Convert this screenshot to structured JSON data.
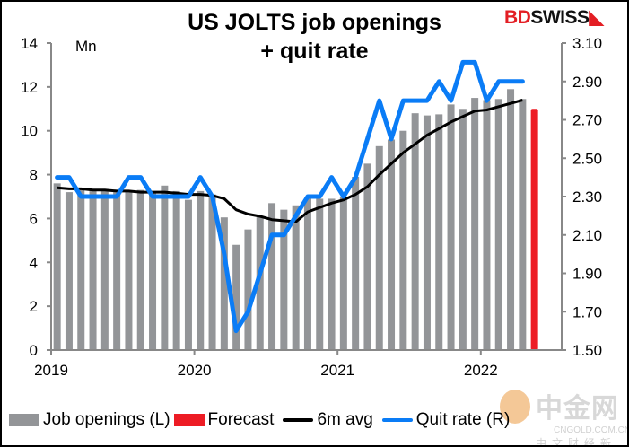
{
  "title_line1": "US JOLTS job openings",
  "title_line2": "+ quit rate",
  "logo": {
    "part1": "BD",
    "part2": "SWISS"
  },
  "watermark": {
    "name": "中金网",
    "url": "CNGOLD.COM.CN",
    "tagline": "中文财经新媒体"
  },
  "colors": {
    "bars": "#939598",
    "forecast": "#ed1c24",
    "avg": "#000000",
    "quit": "#0a7cf6"
  },
  "chart_data": {
    "type": "bar",
    "title": "US JOLTS job openings + quit rate",
    "left_axis": {
      "label": "Mn",
      "range": [
        0,
        14
      ],
      "ticks": [
        "0",
        "2",
        "4",
        "6",
        "8",
        "10",
        "12",
        "14"
      ]
    },
    "right_axis": {
      "range": [
        1.5,
        3.1
      ],
      "ticks": [
        "1.50",
        "1.70",
        "1.90",
        "2.10",
        "2.30",
        "2.50",
        "2.70",
        "2.90",
        "3.10"
      ]
    },
    "x_ticks": [
      "2019",
      "2020",
      "2021",
      "2022"
    ],
    "start": "2019-01",
    "series": [
      {
        "name": "Job openings (L)",
        "type": "bar",
        "axis": "left",
        "values": [
          7.6,
          7.2,
          7.3,
          7.3,
          7.3,
          7.2,
          7.2,
          7.3,
          7.2,
          7.5,
          7.25,
          6.85,
          7.25,
          7.1,
          6.05,
          4.8,
          5.5,
          6.1,
          6.7,
          6.4,
          6.6,
          6.9,
          6.9,
          6.9,
          7.0,
          7.9,
          8.5,
          9.3,
          9.6,
          10.0,
          10.8,
          10.7,
          10.75,
          11.2,
          11.0,
          11.5,
          11.4,
          11.45,
          11.9,
          11.45
        ]
      },
      {
        "name": "Forecast",
        "type": "bar",
        "axis": "left",
        "month": "2022-05",
        "value": 11.0
      },
      {
        "name": "6m avg",
        "type": "line",
        "axis": "left",
        "values": [
          7.4,
          7.35,
          7.35,
          7.3,
          7.3,
          7.25,
          7.25,
          7.2,
          7.2,
          7.2,
          7.15,
          7.1,
          7.1,
          7.05,
          6.9,
          6.4,
          6.2,
          6.1,
          5.95,
          5.9,
          5.85,
          6.3,
          6.5,
          6.7,
          6.85,
          7.1,
          7.45,
          8.0,
          8.5,
          9.0,
          9.4,
          9.8,
          10.1,
          10.4,
          10.65,
          10.9,
          10.95,
          11.1,
          11.25,
          11.4
        ]
      },
      {
        "name": "Quit rate (R)",
        "type": "line",
        "axis": "right",
        "values": [
          2.4,
          2.4,
          2.3,
          2.3,
          2.3,
          2.3,
          2.4,
          2.4,
          2.3,
          2.3,
          2.3,
          2.3,
          2.4,
          2.3,
          2.0,
          1.6,
          1.7,
          1.9,
          2.1,
          2.1,
          2.2,
          2.3,
          2.3,
          2.4,
          2.3,
          2.4,
          2.6,
          2.8,
          2.6,
          2.8,
          2.8,
          2.8,
          2.9,
          2.8,
          3.0,
          3.0,
          2.8,
          2.9,
          2.9,
          2.9
        ]
      }
    ],
    "legend_position": "bottom"
  }
}
